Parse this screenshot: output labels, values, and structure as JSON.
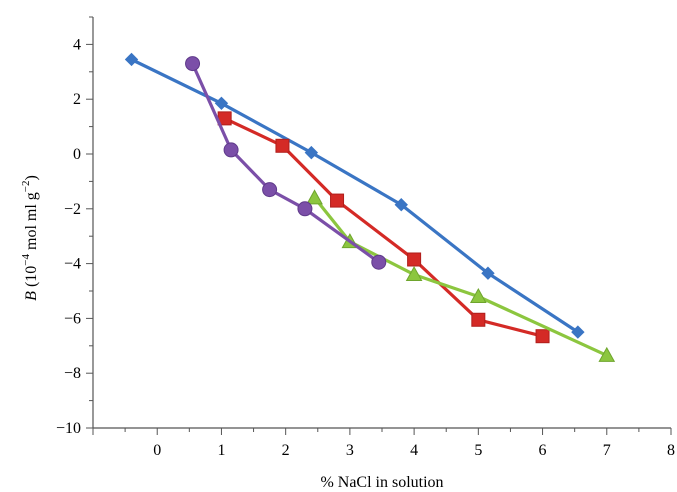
{
  "chart_data": {
    "type": "line",
    "xlabel": "% NaCl in solution",
    "ylabel": {
      "var": "B",
      "open": "(10",
      "exp1": "−4",
      "mid": " mol ml g",
      "exp2": "−2",
      "close": ")"
    },
    "xlim": [
      -1,
      8
    ],
    "ylim": [
      -10,
      5
    ],
    "xticks": [
      0,
      1,
      2,
      3,
      4,
      5,
      6,
      7,
      8
    ],
    "yticks": [
      4,
      2,
      0,
      -2,
      -4,
      -6,
      -8,
      -10
    ],
    "grid": false,
    "legend": "none",
    "series": [
      {
        "color": "#3a75c4",
        "marker": "diamond",
        "points": [
          [
            -0.4,
            3.45
          ],
          [
            1.0,
            1.85
          ],
          [
            2.4,
            0.05
          ],
          [
            3.8,
            -1.85
          ],
          [
            5.15,
            -4.35
          ],
          [
            6.55,
            -6.5
          ]
        ]
      },
      {
        "color": "#d42a26",
        "marker": "square",
        "points": [
          [
            1.05,
            1.3
          ],
          [
            1.95,
            0.3
          ],
          [
            2.8,
            -1.7
          ],
          [
            4.0,
            -3.85
          ],
          [
            5.0,
            -6.05
          ],
          [
            6.0,
            -6.65
          ]
        ]
      },
      {
        "color": "#8cc63f",
        "marker": "triangle",
        "points": [
          [
            2.45,
            -1.6
          ],
          [
            3.0,
            -3.2
          ],
          [
            4.0,
            -4.4
          ],
          [
            5.0,
            -5.2
          ],
          [
            7.0,
            -7.35
          ]
        ]
      },
      {
        "color": "#7b4fa8",
        "marker": "circle",
        "points": [
          [
            0.55,
            3.3
          ],
          [
            1.15,
            0.15
          ],
          [
            1.75,
            -1.3
          ],
          [
            2.3,
            -2.0
          ],
          [
            3.45,
            -3.95
          ]
        ]
      }
    ]
  }
}
